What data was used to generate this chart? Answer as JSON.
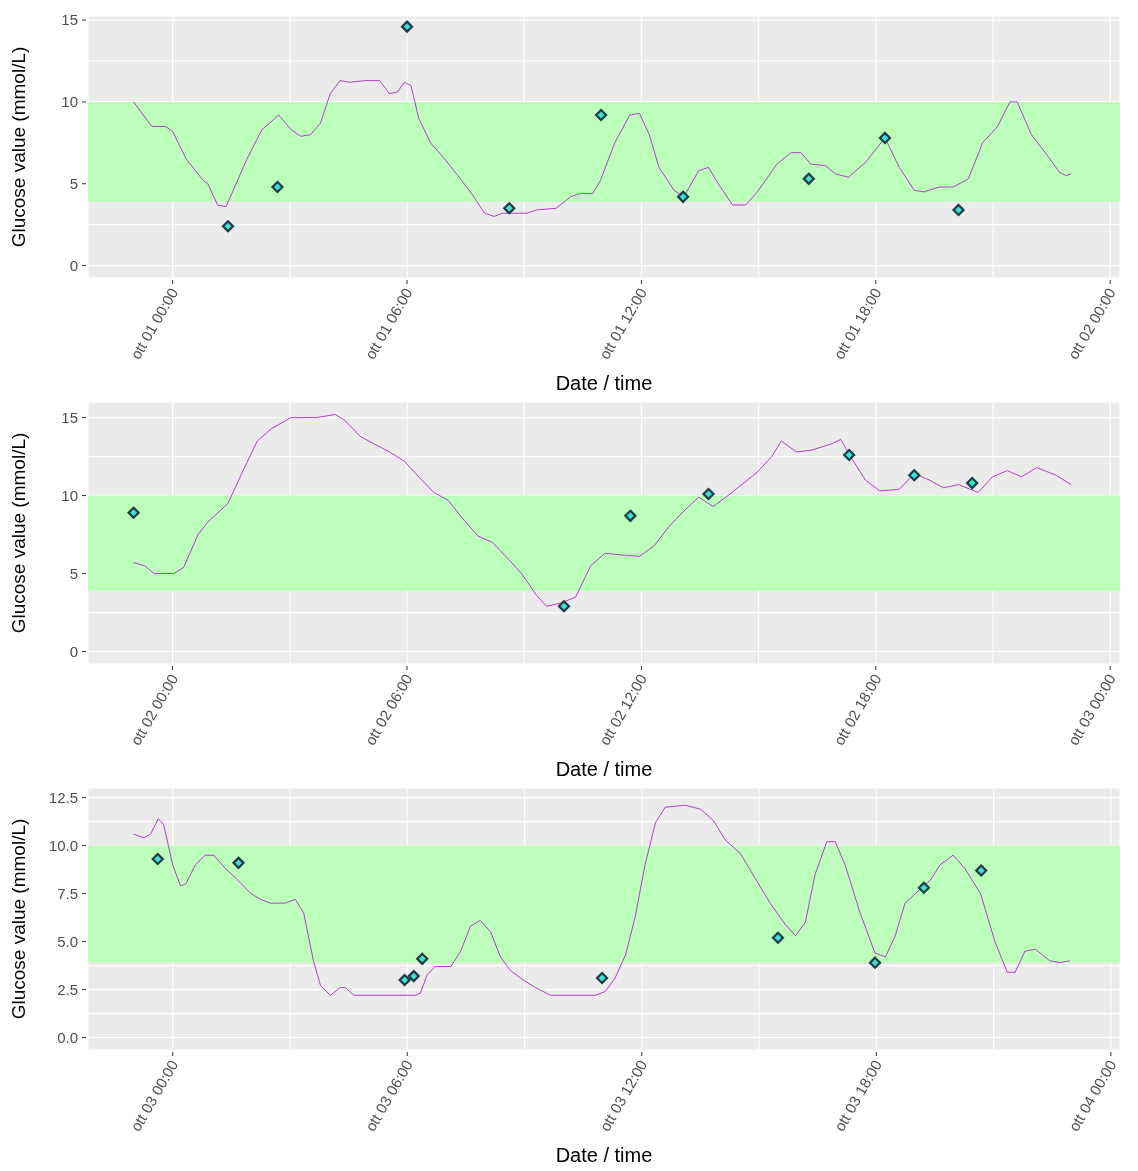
{
  "chart_data": [
    {
      "type": "line",
      "xlabel": "Date / time",
      "ylabel": "Glucose value (mmol/L)",
      "grid": true,
      "xlim": [
        "--09-30T21:50",
        "--10-02T00:15"
      ],
      "ylim": [
        -0.76,
        15.25
      ],
      "xticks": [
        {
          "value": "--10-01T00:00",
          "label": "ott 01 00:00"
        },
        {
          "value": "--10-01T03:00",
          "label": null
        },
        {
          "value": "--10-01T06:00",
          "label": "ott 01 06:00"
        },
        {
          "value": "--10-01T09:00",
          "label": null
        },
        {
          "value": "--10-01T12:00",
          "label": "ott 01 12:00"
        },
        {
          "value": "--10-01T15:00",
          "label": null
        },
        {
          "value": "--10-01T18:00",
          "label": "ott 01 18:00"
        },
        {
          "value": "--10-01T21:00",
          "label": null
        },
        {
          "value": "--10-02T00:00",
          "label": "ott 02 00:00"
        }
      ],
      "yticks": [
        0,
        {
          "value": 2.5,
          "label": null
        },
        5,
        10,
        {
          "value": 12.5,
          "label": null
        },
        15
      ],
      "bands": [
        {
          "axis": "y",
          "from": 3.9,
          "to": 10,
          "color": "#bbffbb"
        }
      ],
      "series": [
        {
          "type": "line",
          "color": "#b040c8",
          "x": [
            "--09-30T23:00",
            "--09-30T23:28",
            "--09-30T23:49",
            "--10-01T00:00",
            "--10-01T00:21",
            "--10-01T00:47",
            "--10-01T00:54",
            "--10-01T01:09",
            "--10-01T01:22",
            "--10-01T01:32",
            "--10-01T01:54",
            "--10-01T02:17",
            "--10-01T02:43",
            "--10-01T03:02",
            "--10-01T03:17",
            "--10-01T03:32",
            "--10-01T03:47",
            "--10-01T04:02",
            "--10-01T04:17",
            "--10-01T04:32",
            "--10-01T04:55",
            "--10-01T05:18",
            "--10-01T05:33",
            "--10-01T05:45",
            "--10-01T05:56",
            "--10-01T06:06",
            "--10-01T06:18",
            "--10-01T06:36",
            "--10-01T06:56",
            "--10-01T07:18",
            "--10-01T07:41",
            "--10-01T07:59",
            "--10-01T08:14",
            "--10-01T08:26",
            "--10-01T09:04",
            "--10-01T09:19",
            "--10-01T09:49",
            "--10-01T10:11",
            "--10-01T10:26",
            "--10-01T10:45",
            "--10-01T10:57",
            "--10-01T11:19",
            "--10-01T11:42",
            "--10-01T11:57",
            "--10-01T12:12",
            "--10-01T12:27",
            "--10-01T12:50",
            "--10-01T13:05",
            "--10-01T13:28",
            "--10-01T13:43",
            "--10-01T13:58",
            "--10-01T14:20",
            "--10-01T14:40",
            "--10-01T14:58",
            "--10-01T15:28",
            "--10-01T15:50",
            "--10-01T16:05",
            "--10-01T16:20",
            "--10-01T16:43",
            "--10-01T16:58",
            "--10-01T17:18",
            "--10-01T17:44",
            "--10-01T18:14",
            "--10-01T18:36",
            "--10-01T18:59",
            "--10-01T19:14",
            "--10-01T19:37",
            "--10-01T19:59",
            "--10-01T20:22",
            "--10-01T20:44",
            "--10-01T21:07",
            "--10-01T21:26",
            "--10-01T21:37",
            "--10-01T21:59",
            "--10-01T22:22",
            "--10-01T22:42",
            "--10-01T22:52",
            "--10-01T23:00"
          ],
          "values": [
            10.0,
            8.5,
            8.5,
            8.2,
            6.5,
            5.2,
            5.0,
            3.7,
            3.6,
            4.5,
            6.5,
            8.3,
            9.2,
            8.3,
            7.9,
            8.0,
            8.7,
            10.5,
            11.3,
            11.2,
            11.3,
            11.3,
            10.5,
            10.6,
            11.2,
            11.0,
            9.0,
            7.5,
            6.6,
            5.5,
            4.3,
            3.2,
            3.0,
            3.2,
            3.2,
            3.4,
            3.5,
            4.2,
            4.4,
            4.4,
            5.2,
            7.5,
            9.2,
            9.3,
            8.0,
            6.0,
            4.6,
            4.2,
            5.8,
            6.0,
            5.0,
            3.7,
            3.7,
            4.5,
            6.2,
            6.9,
            6.9,
            6.2,
            6.1,
            5.6,
            5.4,
            6.3,
            7.8,
            6.0,
            4.6,
            4.5,
            4.8,
            4.8,
            5.3,
            7.5,
            8.5,
            10.0,
            10.0,
            8.0,
            6.8,
            5.7,
            5.5,
            5.6
          ]
        },
        {
          "type": "scatter",
          "color": "#1e3a48",
          "marker": "diamond",
          "x": [
            "--10-01T01:25",
            "--10-01T02:41",
            "--10-01T06:00",
            "--10-01T08:37",
            "--10-01T10:58",
            "--10-01T13:04",
            "--10-01T16:17",
            "--10-01T18:14",
            "--10-01T20:07"
          ],
          "values": [
            2.4,
            4.8,
            14.6,
            3.5,
            9.2,
            4.2,
            5.3,
            7.8,
            3.4
          ]
        }
      ]
    },
    {
      "type": "line",
      "xlabel": "Date / time",
      "ylabel": "Glucose value (mmol/L)",
      "grid": true,
      "xlim": [
        "--10-01T21:50",
        "--10-03T00:15"
      ],
      "ylim": [
        -0.8,
        16.0
      ],
      "xticks": [
        {
          "value": "--10-02T00:00",
          "label": "ott 02 00:00"
        },
        {
          "value": "--10-02T03:00",
          "label": null
        },
        {
          "value": "--10-02T06:00",
          "label": "ott 02 06:00"
        },
        {
          "value": "--10-02T09:00",
          "label": null
        },
        {
          "value": "--10-02T12:00",
          "label": "ott 02 12:00"
        },
        {
          "value": "--10-02T15:00",
          "label": null
        },
        {
          "value": "--10-02T18:00",
          "label": "ott 02 18:00"
        },
        {
          "value": "--10-02T21:00",
          "label": null
        },
        {
          "value": "--10-03T00:00",
          "label": "ott 03 00:00"
        }
      ],
      "yticks": [
        0,
        {
          "value": 2.5,
          "label": null
        },
        5,
        10,
        {
          "value": 12.5,
          "label": null
        },
        15
      ],
      "bands": [
        {
          "axis": "y",
          "from": 3.9,
          "to": 10,
          "color": "#bbffbb"
        }
      ],
      "series": [
        {
          "type": "line",
          "color": "#b040c8",
          "x": [
            "--10-01T23:00",
            "--10-01T23:17",
            "--10-01T23:31",
            "--10-02T00:02",
            "--10-02T00:17",
            "--10-02T00:39",
            "--10-02T00:54",
            "--10-02T01:25",
            "--10-02T01:47",
            "--10-02T02:10",
            "--10-02T02:32",
            "--10-02T03:02",
            "--10-02T03:40",
            "--10-02T04:10",
            "--10-02T04:25",
            "--10-02T04:48",
            "--10-02T05:10",
            "--10-02T05:33",
            "--10-02T05:56",
            "--10-02T06:18",
            "--10-02T06:41",
            "--10-02T07:03",
            "--10-02T07:26",
            "--10-02T07:49",
            "--10-02T08:11",
            "--10-02T08:34",
            "--10-02T08:56",
            "--10-02T09:19",
            "--10-02T09:34",
            "--10-02T09:56",
            "--10-02T10:19",
            "--10-02T10:42",
            "--10-02T11:04",
            "--10-02T11:27",
            "--10-02T11:57",
            "--10-02T12:20",
            "--10-02T12:42",
            "--10-02T13:05",
            "--10-02T13:28",
            "--10-02T13:50",
            "--10-02T14:13",
            "--10-02T14:58",
            "--10-02T15:20",
            "--10-02T15:35",
            "--10-02T15:58",
            "--10-02T16:20",
            "--10-02T16:51",
            "--10-02T17:06",
            "--10-02T17:21",
            "--10-02T17:44",
            "--10-02T18:06",
            "--10-02T18:36",
            "--10-02T18:59",
            "--10-02T19:22",
            "--10-02T19:44",
            "--10-02T20:07",
            "--10-02T20:37",
            "--10-02T20:59",
            "--10-02T21:22",
            "--10-02T21:44",
            "--10-02T22:07",
            "--10-02T22:37",
            "--10-02T23:00"
          ],
          "values": [
            5.7,
            5.5,
            5.0,
            5.0,
            5.4,
            7.5,
            8.3,
            9.5,
            11.5,
            13.5,
            14.3,
            15.0,
            15.0,
            15.2,
            14.8,
            13.8,
            13.3,
            12.8,
            12.2,
            11.2,
            10.2,
            9.7,
            8.5,
            7.4,
            7.0,
            6.0,
            5.0,
            3.6,
            2.9,
            3.1,
            3.5,
            5.5,
            6.3,
            6.2,
            6.1,
            6.8,
            8.0,
            9.0,
            9.9,
            9.3,
            10.0,
            11.5,
            12.5,
            13.5,
            12.8,
            12.9,
            13.3,
            13.6,
            12.5,
            11.0,
            10.3,
            10.4,
            11.4,
            11.0,
            10.5,
            10.7,
            10.2,
            11.2,
            11.6,
            11.2,
            11.8,
            11.3,
            10.7
          ]
        },
        {
          "type": "scatter",
          "color": "#1e3a48",
          "marker": "diamond",
          "x": [
            "--10-01T23:00",
            "--10-02T10:01",
            "--10-02T11:43",
            "--10-02T13:43",
            "--10-02T17:19",
            "--10-02T18:59",
            "--10-02T20:28"
          ],
          "values": [
            8.9,
            2.9,
            8.7,
            10.1,
            12.6,
            11.3,
            10.8
          ]
        }
      ]
    },
    {
      "type": "line",
      "xlabel": "Date / time",
      "ylabel": "Glucose value (mmol/L)",
      "grid": true,
      "xlim": [
        "--10-02T21:50",
        "--10-04T00:14"
      ],
      "ylim": [
        -0.65,
        13.0
      ],
      "xticks": [
        {
          "value": "--10-03T00:00",
          "label": "ott 03 00:00"
        },
        {
          "value": "--10-03T03:00",
          "label": null
        },
        {
          "value": "--10-03T06:00",
          "label": "ott 03 06:00"
        },
        {
          "value": "--10-03T09:00",
          "label": null
        },
        {
          "value": "--10-03T12:00",
          "label": "ott 03 12:00"
        },
        {
          "value": "--10-03T15:00",
          "label": null
        },
        {
          "value": "--10-03T18:00",
          "label": "ott 03 18:00"
        },
        {
          "value": "--10-03T21:00",
          "label": null
        },
        {
          "value": "--10-04T00:00",
          "label": "ott 04 00:00"
        }
      ],
      "yticks": [
        {
          "value": 0,
          "label": "0.0"
        },
        {
          "value": 1.25,
          "label": null
        },
        {
          "value": 2.5,
          "label": "2.5"
        },
        {
          "value": 3.75,
          "label": null
        },
        {
          "value": 5,
          "label": "5.0"
        },
        {
          "value": 7.5,
          "label": "7.5"
        },
        {
          "value": 10,
          "label": "10.0"
        },
        {
          "value": 11.25,
          "label": null
        },
        {
          "value": 12.5,
          "label": "12.5"
        }
      ],
      "bands": [
        {
          "axis": "y",
          "from": 3.9,
          "to": 10,
          "color": "#bbffbb"
        }
      ],
      "series": [
        {
          "type": "line",
          "color": "#b040c8",
          "x": [
            "--10-02T23:00",
            "--10-02T23:16",
            "--10-02T23:26",
            "--10-02T23:38",
            "--10-02T23:46",
            "--10-03T00:00",
            "--10-03T00:12",
            "--10-03T00:20",
            "--10-03T00:35",
            "--10-03T00:50",
            "--10-03T01:03",
            "--10-03T01:21",
            "--10-03T01:37",
            "--10-03T02:00",
            "--10-03T02:15",
            "--10-03T02:30",
            "--10-03T02:53",
            "--10-03T03:08",
            "--10-03T03:21",
            "--10-03T03:36",
            "--10-03T03:47",
            "--10-03T04:02",
            "--10-03T04:17",
            "--10-03T04:25",
            "--10-03T04:38",
            "--10-03T05:11",
            "--10-03T06:12",
            "--10-03T06:20",
            "--10-03T06:31",
            "--10-03T06:43",
            "--10-03T07:07",
            "--10-03T07:22",
            "--10-03T07:37",
            "--10-03T07:52",
            "--10-03T08:08",
            "--10-03T08:23",
            "--10-03T08:38",
            "--10-03T08:58",
            "--10-03T09:17",
            "--10-03T09:40",
            "--10-03T10:49",
            "--10-03T11:04",
            "--10-03T11:19",
            "--10-03T11:35",
            "--10-03T11:50",
            "--10-03T12:05",
            "--10-03T12:21",
            "--10-03T12:36",
            "--10-03T13:07",
            "--10-03T13:30",
            "--10-03T13:50",
            "--10-03T14:08",
            "--10-03T14:31",
            "--10-03T14:54",
            "--10-03T15:17",
            "--10-03T15:40",
            "--10-03T15:56",
            "--10-03T16:11",
            "--10-03T16:26",
            "--10-03T16:44",
            "--10-03T16:57",
            "--10-03T17:12",
            "--10-03T17:35",
            "--10-03T17:58",
            "--10-03T18:14",
            "--10-03T18:29",
            "--10-03T18:44",
            "--10-03T19:00",
            "--10-03T19:23",
            "--10-03T19:38",
            "--10-03T19:58",
            "--10-03T20:16",
            "--10-03T20:40",
            "--10-03T21:02",
            "--10-03T21:21",
            "--10-03T21:33",
            "--10-03T21:48",
            "--10-03T22:04",
            "--10-03T22:26",
            "--10-03T22:42",
            "--10-03T22:57"
          ],
          "values": [
            10.6,
            10.4,
            10.6,
            11.4,
            11.1,
            9.0,
            7.9,
            8.0,
            9.0,
            9.5,
            9.5,
            8.8,
            8.3,
            7.5,
            7.2,
            7.0,
            7.0,
            7.2,
            6.5,
            4.0,
            2.7,
            2.2,
            2.6,
            2.6,
            2.2,
            2.2,
            2.2,
            2.3,
            3.3,
            3.7,
            3.7,
            4.5,
            5.8,
            6.1,
            5.5,
            4.2,
            3.5,
            3.0,
            2.6,
            2.2,
            2.2,
            2.4,
            3.1,
            4.3,
            6.3,
            9.0,
            11.2,
            12.0,
            12.1,
            11.9,
            11.3,
            10.3,
            9.6,
            8.3,
            7.0,
            5.9,
            5.3,
            6.0,
            8.5,
            10.2,
            10.2,
            9.0,
            6.5,
            4.4,
            4.2,
            5.3,
            7.0,
            7.5,
            8.2,
            9.0,
            9.5,
            8.8,
            7.5,
            5.0,
            3.4,
            3.4,
            4.5,
            4.6,
            4.0,
            3.9,
            4.0
          ]
        },
        {
          "type": "scatter",
          "color": "#1e3a48",
          "marker": "diamond",
          "x": [
            "--10-02T23:37",
            "--10-03T01:41",
            "--10-03T05:56",
            "--10-03T06:10",
            "--10-03T06:23",
            "--10-03T10:59",
            "--10-03T15:29",
            "--10-03T17:58",
            "--10-03T19:13",
            "--10-03T20:41"
          ],
          "values": [
            9.3,
            9.1,
            3.0,
            3.2,
            4.1,
            3.1,
            5.2,
            3.9,
            7.8,
            8.7
          ]
        }
      ]
    }
  ]
}
